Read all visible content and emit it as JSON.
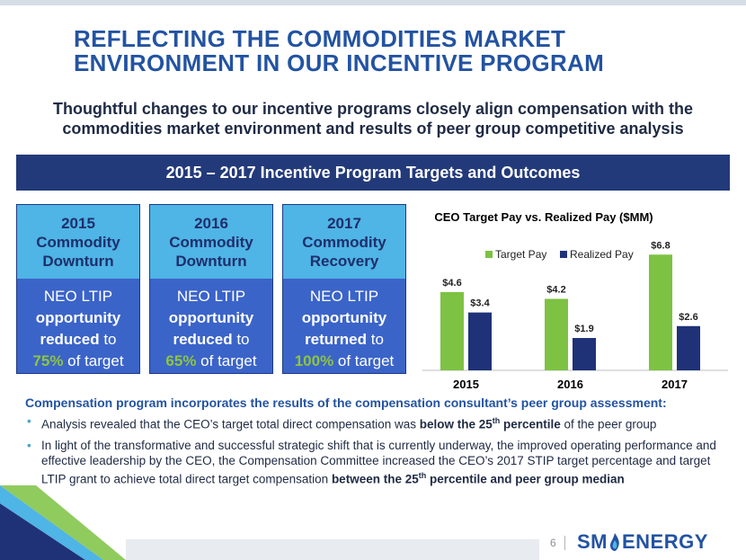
{
  "slide": {
    "title_line1": "REFLECTING THE COMMODITIES MARKET",
    "title_line2": "ENVIRONMENT IN OUR INCENTIVE PROGRAM",
    "subtitle": "Thoughtful changes to our incentive programs closely align compensation with the commodities market environment and results of peer group competitive analysis",
    "banner": "2015 – 2017 Incentive Program Targets and Outcomes",
    "page_number": "6",
    "logo_left": "SM",
    "logo_right": "ENERGY"
  },
  "cards": [
    {
      "year": "2015",
      "line2": "Commodity",
      "line3": "Downturn",
      "lead": "NEO LTIP",
      "bold": "opportunity",
      "bold2": "reduced",
      "to": " to",
      "pct": "75%",
      "rest": " of target"
    },
    {
      "year": "2016",
      "line2": "Commodity",
      "line3": "Downturn",
      "lead": "NEO LTIP",
      "bold": "opportunity",
      "bold2": "reduced",
      "to": " to",
      "pct": "65%",
      "rest": " of target"
    },
    {
      "year": "2017",
      "line2": "Commodity",
      "line3": "Recovery",
      "lead": "NEO LTIP",
      "bold": "opportunity",
      "bold2": "returned",
      "to": " to",
      "pct": "100%",
      "rest": " of target"
    }
  ],
  "chart_data": {
    "type": "bar",
    "title": "CEO Target Pay vs. Realized Pay ($MM)",
    "categories": [
      "2015",
      "2016",
      "2017"
    ],
    "series": [
      {
        "name": "Target Pay",
        "values": [
          4.6,
          4.2,
          6.8
        ],
        "labels": [
          "$4.6",
          "$4.2",
          "$6.8"
        ],
        "color": "#7dc242"
      },
      {
        "name": "Realized Pay",
        "values": [
          3.4,
          1.9,
          2.6
        ],
        "labels": [
          "$3.4",
          "$1.9",
          "$2.6"
        ],
        "color": "#1f3278"
      }
    ],
    "ylim": [
      0,
      7.5
    ],
    "legend": "top-center",
    "grid": false
  },
  "compensation": {
    "heading": "Compensation program incorporates the results of the compensation consultant’s peer group assessment:",
    "b1_pre": "Analysis revealed that the CEO’s target total direct compensation was ",
    "b1_bold": "below the 25",
    "b1_sup": "th",
    "b1_bold2": " percentile",
    "b1_post": " of the peer group",
    "b2_pre": "In light of the transformative and successful strategic shift that is currently underway, the improved operating performance and effective leadership by the CEO, the Compensation Committee increased the CEO’s 2017 STIP target percentage and target LTIP grant to achieve total direct target compensation ",
    "b2_bold": "between the 25",
    "b2_sup": "th",
    "b2_bold2": " percentile and peer group median"
  }
}
